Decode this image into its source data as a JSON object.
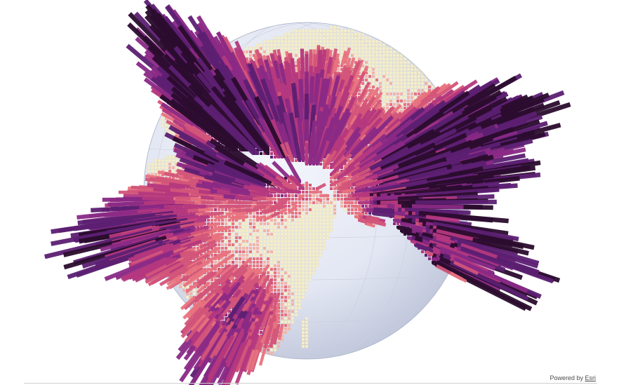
{
  "attribution": {
    "prefix": "Powered by",
    "link": "Esri"
  },
  "colors": {
    "background": "#ffffff",
    "ocean_light": "#f2f4fb",
    "ocean_dark": "#c4cbe0",
    "land_base": "#f2eccc",
    "land_edge": "#d9d0a4",
    "ramp": [
      "#f6f0cf",
      "#f2b4a8",
      "#e8737f",
      "#d3557a",
      "#b5387f",
      "#8a2a86",
      "#5c1f72",
      "#2b0c2e"
    ],
    "graticule": "#c9cede"
  },
  "icons": {
    "scene_view": "globe-icon"
  }
}
